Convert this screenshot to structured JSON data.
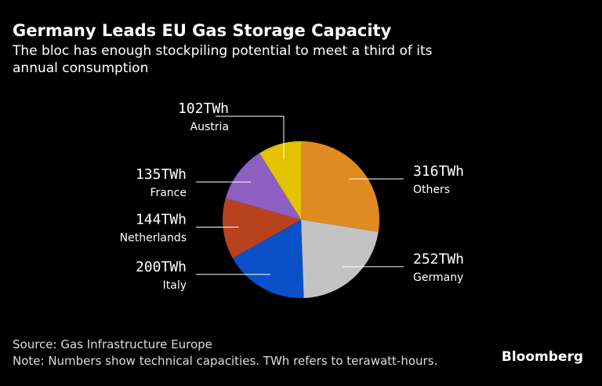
{
  "chart_data": {
    "type": "pie",
    "title": "Germany Leads EU Gas Storage Capacity",
    "subtitle": [
      "The bloc has enough stockpiling potential to meet a third of its",
      "annual consumption"
    ],
    "categories": [
      "Others",
      "Germany",
      "Italy",
      "Netherlands",
      "France",
      "Austria"
    ],
    "values": [
      316,
      252,
      200,
      144,
      135,
      102
    ],
    "value_labels": [
      "316TWh",
      "252TWh",
      "200TWh",
      "144TWh",
      "135TWh",
      "102TWh"
    ],
    "colors": [
      "#e08b22",
      "#c3c3c3",
      "#0b50c8",
      "#b8421d",
      "#8f5ec2",
      "#e3c200"
    ],
    "source": "Source: Gas Infrastructure Europe",
    "note": "Note: Numbers show technical capacities. TWh refers to terawatt-hours.",
    "brand": "Bloomberg"
  }
}
